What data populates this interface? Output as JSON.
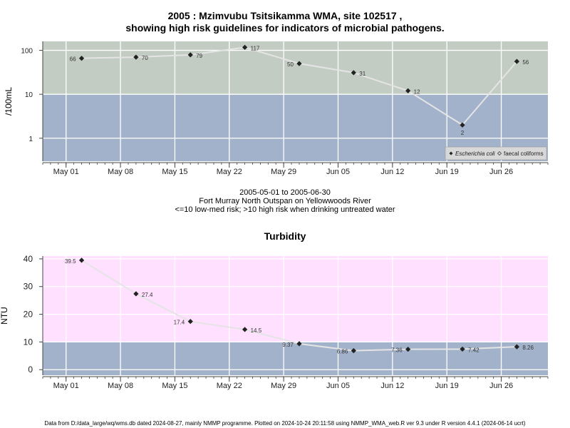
{
  "header": {
    "title_line1": "2005 : Mzimvubu Tsitsikamma WMA, site 102517 ,",
    "title_line2": "showing high risk guidelines for indicators of microbial pathogens."
  },
  "middle": {
    "date_range": "2005-05-01 to 2005-06-30",
    "location": "Fort Murray North Outspan on Yellowwoods River",
    "risk_note": "<=10 low-med risk; >10 high risk when drinking untreated water"
  },
  "footer": {
    "note": "Data from D:/data_large/wq/wms.db dated 2024-08-27, mainly NMMP programme. Plotted on 2024-10-24 20:11:58 using NMMP_WMA_web.R ver 9.3 under R version 4.4.1 (2024-06-14 ucrt)"
  },
  "chart_data": [
    {
      "type": "line",
      "title": "",
      "ylabel": "/100mL",
      "yscale": "log",
      "ylim": [
        0.3,
        160
      ],
      "yticks": [
        1,
        10,
        100
      ],
      "ytick_labels": [
        "1",
        "10",
        "100"
      ],
      "xlim": [
        "2005-04-28",
        "2005-07-02"
      ],
      "xticks": [
        "2005-05-01",
        "2005-05-08",
        "2005-05-15",
        "2005-05-22",
        "2005-05-29",
        "2005-06-05",
        "2005-06-12",
        "2005-06-19",
        "2005-06-26"
      ],
      "xtick_labels": [
        "May 01",
        "May 08",
        "May 15",
        "May 22",
        "May 29",
        "Jun 05",
        "Jun 12",
        "Jun 19",
        "Jun 26"
      ],
      "grid": true,
      "bands": [
        {
          "from": 0.3,
          "to": 10,
          "color": "#a2b2cb"
        },
        {
          "from": 10,
          "to": 160,
          "color": "#c3ccc3"
        }
      ],
      "legend_position": "bottom-right",
      "legend": [
        "Escherichia coli",
        "faecal coliforms"
      ],
      "series": [
        {
          "name": "Escherichia coli",
          "x": [
            "2005-05-03",
            "2005-05-10",
            "2005-05-17",
            "2005-05-24",
            "2005-05-31",
            "2005-06-07",
            "2005-06-14",
            "2005-06-21",
            "2005-06-28"
          ],
          "y": [
            66,
            70,
            79,
            117,
            50,
            31,
            12,
            2,
            56
          ],
          "labels": [
            "66",
            "70",
            "79",
            "117",
            "50",
            "31",
            "12",
            "2",
            "56"
          ]
        }
      ]
    },
    {
      "type": "line",
      "title": "Turbidity",
      "ylabel": "NTU",
      "ylim": [
        -2,
        41
      ],
      "yticks": [
        0,
        10,
        20,
        30,
        40
      ],
      "ytick_labels": [
        "0",
        "10",
        "20",
        "30",
        "40"
      ],
      "xlim": [
        "2005-04-28",
        "2005-07-02"
      ],
      "xticks": [
        "2005-05-01",
        "2005-05-08",
        "2005-05-15",
        "2005-05-22",
        "2005-05-29",
        "2005-06-05",
        "2005-06-12",
        "2005-06-19",
        "2005-06-26"
      ],
      "xtick_labels": [
        "May 01",
        "May 08",
        "May 15",
        "May 22",
        "May 29",
        "Jun 05",
        "Jun 12",
        "Jun 19",
        "Jun 26"
      ],
      "grid": true,
      "bands": [
        {
          "from": -2,
          "to": 10,
          "color": "#a2b2cb"
        },
        {
          "from": 10,
          "to": 41,
          "color": "#ffe0ff"
        }
      ],
      "series": [
        {
          "name": "",
          "x": [
            "2005-05-03",
            "2005-05-10",
            "2005-05-17",
            "2005-05-24",
            "2005-05-31",
            "2005-06-07",
            "2005-06-14",
            "2005-06-21",
            "2005-06-28"
          ],
          "y": [
            39.5,
            27.4,
            17.4,
            14.5,
            9.37,
            6.86,
            7.36,
            7.42,
            8.26
          ],
          "labels": [
            "39.5",
            "27.4",
            "17.4",
            "14.5",
            "9.37",
            "6.86",
            "7.36",
            "7.42",
            "8.26"
          ]
        }
      ]
    }
  ]
}
